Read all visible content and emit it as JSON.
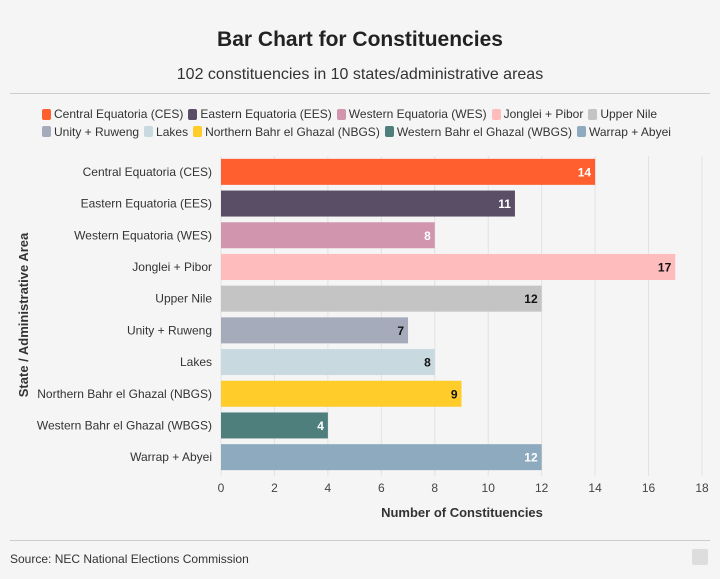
{
  "chart_data": {
    "type": "bar",
    "orientation": "horizontal",
    "title": "Bar Chart for Constituencies",
    "subtitle": "102 constituencies in 10 states/administrative areas",
    "xlabel": "Number of Constituencies",
    "ylabel": "State / Administrative Area",
    "xlim": [
      0,
      18
    ],
    "xticks": [
      0,
      2,
      4,
      6,
      8,
      10,
      12,
      14,
      16,
      18
    ],
    "grid": true,
    "legend_position": "top",
    "categories": [
      "Central Equatoria (CES)",
      "Eastern Equatoria (EES)",
      "Western Equatoria (WES)",
      "Jonglei + Pibor",
      "Upper Nile",
      "Unity + Ruweng",
      "Lakes",
      "Northern Bahr el Ghazal (NBGS)",
      "Western Bahr el Ghazal (WBGS)",
      "Warrap + Abyei"
    ],
    "values": [
      14,
      11,
      8,
      17,
      12,
      7,
      8,
      9,
      4,
      12
    ],
    "colors": [
      "#ff5f2e",
      "#5a4d66",
      "#d196ae",
      "#ffbcbc",
      "#c4c4c4",
      "#a6abbc",
      "#c8d9df",
      "#ffcc29",
      "#4e7f7c",
      "#8eaabe"
    ],
    "label_colors": [
      "#ffffff",
      "#ffffff",
      "#ffffff",
      "#111111",
      "#111111",
      "#111111",
      "#111111",
      "#111111",
      "#ffffff",
      "#ffffff"
    ]
  },
  "source": "Source: NEC National Elections Commission"
}
